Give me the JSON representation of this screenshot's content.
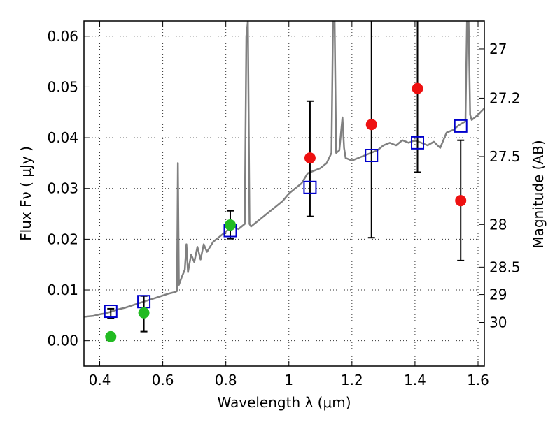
{
  "chart_data": {
    "type": "scatter",
    "xlabel": "Wavelength  λ (μm)",
    "ylabel": "Flux  Fν  ( μJy )",
    "ylabel_right": "Magnitude (AB)",
    "xlim": [
      0.35,
      1.62
    ],
    "ylim": [
      -0.005,
      0.063
    ],
    "grid": true,
    "x_ticks": [
      {
        "value": 0.4,
        "label": "0.4"
      },
      {
        "value": 0.6,
        "label": "0.6"
      },
      {
        "value": 0.8,
        "label": "0.8"
      },
      {
        "value": 1.0,
        "label": "1"
      },
      {
        "value": 1.2,
        "label": "1.2"
      },
      {
        "value": 1.4,
        "label": "1.4"
      },
      {
        "value": 1.6,
        "label": "1.6"
      }
    ],
    "y_ticks": [
      {
        "value": 0.0,
        "label": "0.00"
      },
      {
        "value": 0.01,
        "label": "0.01"
      },
      {
        "value": 0.02,
        "label": "0.02"
      },
      {
        "value": 0.03,
        "label": "0.03"
      },
      {
        "value": 0.04,
        "label": "0.04"
      },
      {
        "value": 0.05,
        "label": "0.05"
      },
      {
        "value": 0.06,
        "label": "0.06"
      }
    ],
    "right_ticks": [
      {
        "flux": 0.0575,
        "label": "27"
      },
      {
        "flux": 0.0478,
        "label": "27.2"
      },
      {
        "flux": 0.0363,
        "label": "27.5"
      },
      {
        "flux": 0.0229,
        "label": "28"
      },
      {
        "flux": 0.0145,
        "label": "28.5"
      },
      {
        "flux": 0.0091,
        "label": "29"
      },
      {
        "flux": 0.0036,
        "label": "30"
      }
    ],
    "colors": {
      "spectrum": "#808080",
      "model": "#0000cc",
      "green": "#22bb22",
      "red": "#ee1111",
      "errorbar": "#000000"
    },
    "spectrum": [
      [
        0.35,
        0.0047
      ],
      [
        0.38,
        0.0049
      ],
      [
        0.4,
        0.0052
      ],
      [
        0.42,
        0.0054
      ],
      [
        0.44,
        0.0058
      ],
      [
        0.46,
        0.0062
      ],
      [
        0.48,
        0.0065
      ],
      [
        0.5,
        0.0069
      ],
      [
        0.52,
        0.0073
      ],
      [
        0.54,
        0.0077
      ],
      [
        0.56,
        0.0081
      ],
      [
        0.58,
        0.0085
      ],
      [
        0.6,
        0.0089
      ],
      [
        0.62,
        0.0093
      ],
      [
        0.64,
        0.0096
      ],
      [
        0.645,
        0.0098
      ],
      [
        0.648,
        0.035
      ],
      [
        0.651,
        0.011
      ],
      [
        0.66,
        0.0125
      ],
      [
        0.67,
        0.014
      ],
      [
        0.675,
        0.019
      ],
      [
        0.68,
        0.0135
      ],
      [
        0.69,
        0.017
      ],
      [
        0.7,
        0.0155
      ],
      [
        0.71,
        0.0185
      ],
      [
        0.72,
        0.016
      ],
      [
        0.73,
        0.019
      ],
      [
        0.74,
        0.0175
      ],
      [
        0.76,
        0.0195
      ],
      [
        0.78,
        0.0205
      ],
      [
        0.8,
        0.0215
      ],
      [
        0.82,
        0.0225
      ],
      [
        0.84,
        0.022
      ],
      [
        0.86,
        0.023
      ],
      [
        0.865,
        0.06
      ],
      [
        0.87,
        0.063
      ],
      [
        0.875,
        0.023
      ],
      [
        0.88,
        0.0225
      ],
      [
        0.9,
        0.0235
      ],
      [
        0.92,
        0.0245
      ],
      [
        0.94,
        0.0255
      ],
      [
        0.96,
        0.0265
      ],
      [
        0.98,
        0.0275
      ],
      [
        1.0,
        0.029
      ],
      [
        1.02,
        0.03
      ],
      [
        1.04,
        0.031
      ],
      [
        1.06,
        0.033
      ],
      [
        1.08,
        0.0335
      ],
      [
        1.1,
        0.034
      ],
      [
        1.12,
        0.035
      ],
      [
        1.135,
        0.037
      ],
      [
        1.14,
        0.063
      ],
      [
        1.145,
        0.063
      ],
      [
        1.15,
        0.037
      ],
      [
        1.16,
        0.0375
      ],
      [
        1.17,
        0.044
      ],
      [
        1.175,
        0.038
      ],
      [
        1.18,
        0.036
      ],
      [
        1.2,
        0.0355
      ],
      [
        1.22,
        0.036
      ],
      [
        1.24,
        0.0365
      ],
      [
        1.26,
        0.037
      ],
      [
        1.28,
        0.0375
      ],
      [
        1.3,
        0.0385
      ],
      [
        1.32,
        0.039
      ],
      [
        1.34,
        0.0385
      ],
      [
        1.36,
        0.0395
      ],
      [
        1.38,
        0.039
      ],
      [
        1.4,
        0.0395
      ],
      [
        1.42,
        0.039
      ],
      [
        1.44,
        0.0385
      ],
      [
        1.46,
        0.0392
      ],
      [
        1.48,
        0.038
      ],
      [
        1.5,
        0.041
      ],
      [
        1.52,
        0.0415
      ],
      [
        1.54,
        0.0425
      ],
      [
        1.56,
        0.0432
      ],
      [
        1.565,
        0.063
      ],
      [
        1.57,
        0.063
      ],
      [
        1.575,
        0.0445
      ],
      [
        1.58,
        0.0435
      ],
      [
        1.6,
        0.0445
      ],
      [
        1.62,
        0.0458
      ]
    ],
    "model_points": [
      {
        "x": 0.435,
        "y": 0.0058
      },
      {
        "x": 0.54,
        "y": 0.0077
      },
      {
        "x": 0.814,
        "y": 0.0217
      },
      {
        "x": 1.067,
        "y": 0.0302
      },
      {
        "x": 1.262,
        "y": 0.0365
      },
      {
        "x": 1.408,
        "y": 0.039
      },
      {
        "x": 1.545,
        "y": 0.0423
      }
    ],
    "observed_green": [
      {
        "x": 0.435,
        "y": 0.0008,
        "err_low": 0.0045,
        "err_high": 0.0063
      },
      {
        "x": 0.54,
        "y": 0.0055,
        "err_low": 0.0018,
        "err_high": 0.0088
      },
      {
        "x": 0.814,
        "y": 0.0228,
        "err_low": 0.0201,
        "err_high": 0.0256
      }
    ],
    "observed_red": [
      {
        "x": 1.067,
        "y": 0.036,
        "err_low": 0.0245,
        "err_high": 0.0472
      },
      {
        "x": 1.262,
        "y": 0.0426,
        "err_low": 0.0203,
        "err_high": 0.063
      },
      {
        "x": 1.408,
        "y": 0.0497,
        "err_low": 0.0332,
        "err_high": 0.063
      },
      {
        "x": 1.545,
        "y": 0.0276,
        "err_low": 0.0158,
        "err_high": 0.0395
      }
    ]
  }
}
